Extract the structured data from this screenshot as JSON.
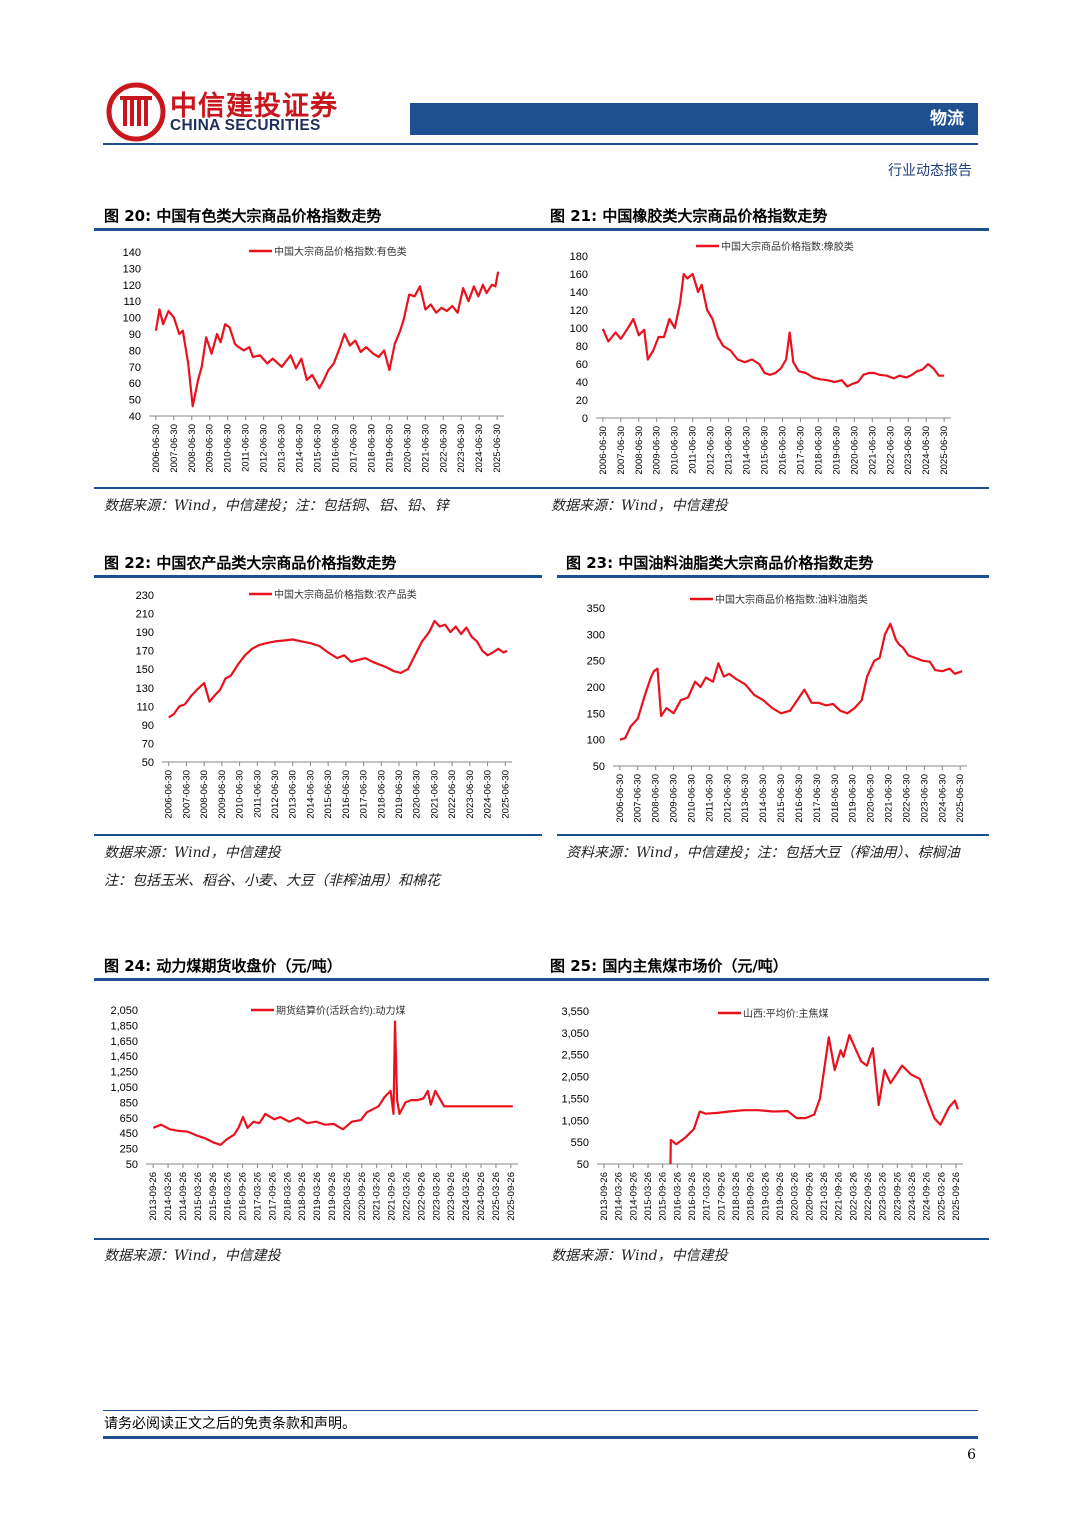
{
  "header": {
    "logo_cn": "中信建投证券",
    "logo_en": "CHINA SECURITIES",
    "sector": "物流",
    "report_type": "行业动态报告"
  },
  "figures": [
    {
      "title": "图 20: 中国有色类大宗商品价格指数走势",
      "source": "数据来源：Wind，中信建投；注：包括铜、铝、铅、锌",
      "note": ""
    },
    {
      "title": "图 21: 中国橡胶类大宗商品价格指数走势",
      "source": "数据来源：Wind，中信建投",
      "note": ""
    },
    {
      "title": "图 22: 中国农产品类大宗商品价格指数走势",
      "source": "数据来源：Wind，中信建投",
      "note": "注：包括玉米、稻谷、小麦、大豆（非榨油用）和棉花"
    },
    {
      "title": "图 23: 中国油料油脂类大宗商品价格指数走势",
      "source": "资料来源：Wind，中信建投；注：包括大豆（榨油用）、棕榈油",
      "note": ""
    },
    {
      "title": "图 24: 动力煤期货收盘价（元/吨）",
      "source": "数据来源：Wind，中信建投",
      "note": ""
    },
    {
      "title": "图 25: 国内主焦煤市场价（元/吨）",
      "source": "数据来源：Wind，中信建投",
      "note": ""
    }
  ],
  "footer": {
    "disclaimer": "请务必阅读正文之后的免责条款和声明。",
    "page": "6"
  },
  "chart_data": [
    {
      "type": "line",
      "line_color": "#e8121e",
      "series": [
        {
          "name": "中国大宗商品价格指数:有色类"
        }
      ],
      "yticks": [
        "40",
        "50",
        "60",
        "70",
        "80",
        "90",
        "100",
        "110",
        "120",
        "130",
        "140"
      ],
      "ylim": [
        40,
        140
      ],
      "xticks": [
        "2006-06-30",
        "2007-06-30",
        "2008-06-30",
        "2009-06-30",
        "2010-06-30",
        "2011-06-30",
        "2012-06-30",
        "2013-06-30",
        "2014-06-30",
        "2015-06-30",
        "2016-06-30",
        "2017-06-30",
        "2018-06-30",
        "2019-06-30",
        "2020-06-30",
        "2021-06-30",
        "2022-06-30",
        "2023-06-30",
        "2024-06-30",
        "2025-06-30"
      ],
      "x": [
        2006.5,
        2006.7,
        2006.9,
        2007.2,
        2007.5,
        2007.8,
        2008.0,
        2008.3,
        2008.55,
        2008.85,
        2009.05,
        2009.3,
        2009.6,
        2009.9,
        2010.1,
        2010.35,
        2010.6,
        2010.9,
        2011.1,
        2011.4,
        2011.7,
        2011.9,
        2012.3,
        2012.7,
        2013.0,
        2013.5,
        2014.0,
        2014.3,
        2014.6,
        2014.9,
        2015.2,
        2015.6,
        2015.85,
        2016.1,
        2016.4,
        2016.75,
        2017.0,
        2017.3,
        2017.6,
        2017.9,
        2018.2,
        2018.6,
        2018.9,
        2019.2,
        2019.5,
        2019.8,
        2020.1,
        2020.3,
        2020.6,
        2020.9,
        2021.2,
        2021.5,
        2021.8,
        2022.1,
        2022.4,
        2022.7,
        2023.0,
        2023.3,
        2023.6,
        2023.9,
        2024.2,
        2024.45,
        2024.7,
        2024.9,
        2025.2,
        2025.4,
        2025.55
      ],
      "values": [
        92,
        105,
        96,
        104,
        100,
        90,
        92,
        72,
        46,
        62,
        70,
        88,
        78,
        90,
        85,
        96,
        94,
        84,
        82,
        80,
        82,
        76,
        77,
        72,
        75,
        70,
        77,
        69,
        75,
        62,
        65,
        57,
        62,
        68,
        72,
        82,
        90,
        83,
        86,
        79,
        82,
        78,
        76,
        80,
        68,
        84,
        92,
        99,
        114,
        113,
        119,
        105,
        108,
        103,
        106,
        104,
        107,
        103,
        118,
        110,
        119,
        113,
        120,
        115,
        120,
        119,
        128
      ]
    },
    {
      "type": "line",
      "line_color": "#e8121e",
      "series": [
        {
          "name": "中国大宗商品价格指数:橡胶类"
        }
      ],
      "yticks": [
        "0",
        "20",
        "40",
        "60",
        "80",
        "100",
        "120",
        "140",
        "160",
        "180"
      ],
      "ylim": [
        0,
        180
      ],
      "xticks": [
        "2006-06-30",
        "2007-06-30",
        "2008-06-30",
        "2009-06-30",
        "2010-06-30",
        "2011-06-30",
        "2012-06-30",
        "2013-06-30",
        "2014-06-30",
        "2015-06-30",
        "2016-06-30",
        "2017-06-30",
        "2018-06-30",
        "2019-06-30",
        "2020-06-30",
        "2021-06-30",
        "2022-06-30",
        "2023-06-30",
        "2024-06-30",
        "2025-06-30"
      ],
      "x": [
        2006.5,
        2006.8,
        2007.2,
        2007.5,
        2007.9,
        2008.2,
        2008.5,
        2008.8,
        2009.0,
        2009.3,
        2009.6,
        2009.9,
        2010.2,
        2010.5,
        2010.8,
        2011.0,
        2011.2,
        2011.5,
        2011.8,
        2012.0,
        2012.3,
        2012.6,
        2012.9,
        2013.2,
        2013.6,
        2014.0,
        2014.4,
        2014.8,
        2015.2,
        2015.5,
        2015.8,
        2016.1,
        2016.4,
        2016.7,
        2016.9,
        2017.1,
        2017.4,
        2017.8,
        2018.2,
        2018.6,
        2019.0,
        2019.4,
        2019.8,
        2020.1,
        2020.4,
        2020.7,
        2021.0,
        2021.3,
        2021.6,
        2021.9,
        2022.3,
        2022.7,
        2023.0,
        2023.4,
        2023.7,
        2024.0,
        2024.3,
        2024.6,
        2024.9,
        2025.2,
        2025.5
      ],
      "values": [
        99,
        85,
        95,
        88,
        100,
        110,
        92,
        98,
        65,
        75,
        90,
        90,
        110,
        100,
        128,
        160,
        155,
        160,
        140,
        148,
        120,
        110,
        90,
        80,
        75,
        65,
        62,
        65,
        60,
        50,
        48,
        50,
        55,
        65,
        95,
        62,
        52,
        50,
        45,
        43,
        42,
        40,
        42,
        35,
        38,
        40,
        48,
        50,
        50,
        48,
        47,
        44,
        47,
        45,
        48,
        52,
        54,
        60,
        55,
        47,
        47
      ]
    },
    {
      "type": "line",
      "line_color": "#e8121e",
      "series": [
        {
          "name": "中国大宗商品价格指数:农产品类"
        }
      ],
      "yticks": [
        "50",
        "70",
        "90",
        "110",
        "130",
        "150",
        "170",
        "190",
        "210",
        "230"
      ],
      "ylim": [
        50,
        230
      ],
      "xticks": [
        "2006-06-30",
        "2007-06-30",
        "2008-06-30",
        "2009-06-30",
        "2010-06-30",
        "2011-06-30",
        "2012-06-30",
        "2013-06-30",
        "2014-06-30",
        "2015-06-30",
        "2016-06-30",
        "2017-06-30",
        "2018-06-30",
        "2019-06-30",
        "2020-06-30",
        "2021-06-30",
        "2022-06-30",
        "2023-06-30",
        "2024-06-30",
        "2025-06-30"
      ],
      "x": [
        2006.5,
        2006.8,
        2007.1,
        2007.4,
        2007.8,
        2008.1,
        2008.5,
        2008.8,
        2009.1,
        2009.4,
        2009.7,
        2010.0,
        2010.4,
        2010.8,
        2011.2,
        2011.6,
        2012.0,
        2012.5,
        2013.0,
        2013.5,
        2014.0,
        2014.5,
        2015.0,
        2015.5,
        2016.0,
        2016.4,
        2016.8,
        2017.2,
        2017.6,
        2018.0,
        2018.4,
        2018.8,
        2019.2,
        2019.6,
        2020.0,
        2020.4,
        2020.8,
        2021.2,
        2021.5,
        2021.8,
        2022.1,
        2022.4,
        2022.7,
        2023.0,
        2023.3,
        2023.6,
        2023.9,
        2024.2,
        2024.5,
        2024.8,
        2025.1,
        2025.4,
        2025.6
      ],
      "values": [
        98,
        102,
        110,
        112,
        122,
        128,
        135,
        115,
        122,
        128,
        140,
        143,
        155,
        165,
        172,
        176,
        178,
        180,
        181,
        182,
        180,
        178,
        175,
        168,
        162,
        165,
        158,
        160,
        162,
        158,
        155,
        152,
        148,
        146,
        150,
        165,
        180,
        190,
        202,
        196,
        198,
        190,
        196,
        188,
        195,
        185,
        180,
        170,
        165,
        168,
        172,
        168,
        170
      ]
    },
    {
      "type": "line",
      "line_color": "#e8121e",
      "series": [
        {
          "name": "中国大宗商品价格指数:油料油脂类"
        }
      ],
      "yticks": [
        "50",
        "100",
        "150",
        "200",
        "250",
        "300",
        "350"
      ],
      "ylim": [
        50,
        350
      ],
      "xticks": [
        "2006-06-30",
        "2007-06-30",
        "2008-06-30",
        "2009-06-30",
        "2010-06-30",
        "2011-06-30",
        "2012-06-30",
        "2013-06-30",
        "2014-06-30",
        "2015-06-30",
        "2016-06-30",
        "2017-06-30",
        "2018-06-30",
        "2019-06-30",
        "2020-06-30",
        "2021-06-30",
        "2022-06-30",
        "2023-06-30",
        "2024-06-30",
        "2025-06-30"
      ],
      "x": [
        2006.5,
        2006.8,
        2007.1,
        2007.5,
        2007.9,
        2008.2,
        2008.4,
        2008.6,
        2008.8,
        2009.1,
        2009.5,
        2009.9,
        2010.3,
        2010.7,
        2011.0,
        2011.3,
        2011.7,
        2012.0,
        2012.3,
        2012.6,
        2013.0,
        2013.5,
        2014.0,
        2014.5,
        2015.0,
        2015.5,
        2016.0,
        2016.4,
        2016.8,
        2017.2,
        2017.6,
        2018.0,
        2018.4,
        2018.8,
        2019.2,
        2019.6,
        2020.0,
        2020.3,
        2020.7,
        2021.0,
        2021.3,
        2021.6,
        2021.9,
        2022.1,
        2022.3,
        2022.6,
        2023.0,
        2023.4,
        2023.8,
        2024.1,
        2024.5,
        2024.9,
        2025.2,
        2025.6
      ],
      "values": [
        100,
        103,
        125,
        140,
        185,
        215,
        230,
        235,
        145,
        160,
        150,
        175,
        180,
        210,
        200,
        218,
        210,
        245,
        220,
        225,
        215,
        205,
        185,
        175,
        160,
        150,
        155,
        175,
        195,
        170,
        170,
        165,
        168,
        155,
        150,
        160,
        175,
        220,
        250,
        255,
        300,
        320,
        290,
        280,
        275,
        260,
        255,
        250,
        248,
        232,
        230,
        235,
        225,
        230
      ]
    },
    {
      "type": "line",
      "line_color": "#e8121e",
      "series": [
        {
          "name": "期货结算价(活跃合约):动力煤"
        }
      ],
      "yticks": [
        "50",
        "250",
        "450",
        "650",
        "850",
        "1,050",
        "1,250",
        "1,450",
        "1,650",
        "1,850",
        "2,050"
      ],
      "ylim": [
        50,
        2050
      ],
      "xticks": [
        "2013-09-26",
        "2014-03-26",
        "2014-09-26",
        "2015-03-26",
        "2015-09-26",
        "2016-03-26",
        "2016-09-26",
        "2017-03-26",
        "2017-09-26",
        "2018-03-26",
        "2018-09-26",
        "2019-03-26",
        "2019-09-26",
        "2020-03-26",
        "2020-09-26",
        "2021-03-26",
        "2021-09-26",
        "2022-03-26",
        "2022-09-26",
        "2023-03-26",
        "2023-09-26",
        "2024-03-26",
        "2024-09-26",
        "2025-03-26",
        "2025-09-26"
      ],
      "x": [
        2013.74,
        2014.0,
        2014.3,
        2014.6,
        2014.9,
        2015.2,
        2015.5,
        2015.75,
        2016.0,
        2016.2,
        2016.45,
        2016.6,
        2016.75,
        2016.9,
        2017.1,
        2017.3,
        2017.5,
        2017.8,
        2018.0,
        2018.3,
        2018.6,
        2018.9,
        2019.2,
        2019.5,
        2019.8,
        2020.1,
        2020.4,
        2020.7,
        2020.9,
        2021.1,
        2021.3,
        2021.5,
        2021.7,
        2021.8,
        2021.85,
        2021.92,
        2022.0,
        2022.2,
        2022.4,
        2022.6,
        2022.8,
        2022.95,
        2023.05,
        2023.2,
        2023.5,
        2024.0,
        2024.5,
        2025.0,
        2025.5,
        2025.8
      ],
      "values": [
        520,
        560,
        500,
        480,
        470,
        420,
        380,
        330,
        300,
        370,
        430,
        520,
        660,
        520,
        600,
        580,
        700,
        630,
        660,
        600,
        650,
        580,
        600,
        560,
        570,
        500,
        600,
        620,
        720,
        760,
        800,
        920,
        1000,
        700,
        1900,
        880,
        700,
        850,
        880,
        880,
        900,
        1000,
        820,
        1000,
        800,
        800,
        800,
        800,
        800,
        800
      ]
    },
    {
      "type": "line",
      "line_color": "#e8121e",
      "series": [
        {
          "name": "山西:平均价:主焦煤"
        }
      ],
      "yticks": [
        "50",
        "550",
        "1,050",
        "1,550",
        "2,050",
        "2,550",
        "3,050",
        "3,550"
      ],
      "ylim": [
        50,
        3550
      ],
      "xticks": [
        "2013-09-26",
        "2014-03-26",
        "2014-09-26",
        "2015-03-26",
        "2015-09-26",
        "2016-03-26",
        "2016-09-26",
        "2017-03-26",
        "2017-09-26",
        "2018-03-26",
        "2018-09-26",
        "2019-03-26",
        "2019-09-26",
        "2020-03-26",
        "2020-09-26",
        "2021-03-26",
        "2021-09-26",
        "2022-03-26",
        "2022-09-26",
        "2023-03-26",
        "2023-09-26",
        "2024-03-26",
        "2024-09-26",
        "2025-03-26",
        "2025-09-26"
      ],
      "x": [
        2016.0,
        2016.01,
        2016.2,
        2016.5,
        2016.8,
        2017.0,
        2017.2,
        2017.6,
        2018.0,
        2018.5,
        2019.0,
        2019.5,
        2020.0,
        2020.3,
        2020.6,
        2020.9,
        2021.1,
        2021.4,
        2021.6,
        2021.8,
        2021.9,
        2022.1,
        2022.3,
        2022.5,
        2022.7,
        2022.9,
        2023.1,
        2023.3,
        2023.5,
        2023.7,
        2023.9,
        2024.2,
        2024.5,
        2024.8,
        2025.0,
        2025.2,
        2025.5,
        2025.7,
        2025.8
      ],
      "values": [
        50,
        600,
        500,
        650,
        850,
        1250,
        1200,
        1220,
        1250,
        1280,
        1280,
        1250,
        1260,
        1100,
        1100,
        1180,
        1550,
        2950,
        2200,
        2650,
        2500,
        3000,
        2700,
        2400,
        2300,
        2700,
        1400,
        2200,
        1900,
        2100,
        2300,
        2100,
        2000,
        1450,
        1100,
        950,
        1350,
        1500,
        1300
      ]
    }
  ]
}
